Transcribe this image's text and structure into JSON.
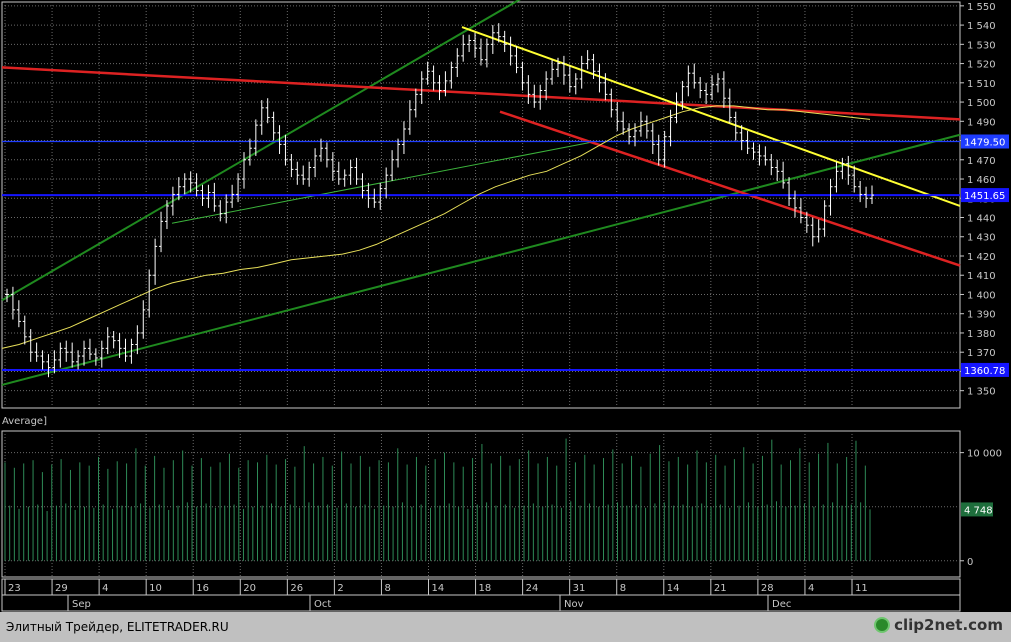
{
  "chart_data": [
    {
      "type": "candlestick",
      "panel": "price",
      "y_ticks": [
        "1 550",
        "1 540",
        "1 530",
        "1 520",
        "1 510",
        "1 500",
        "1 490",
        "1 480",
        "1 470",
        "1 460",
        "1 450",
        "1 440",
        "1 430",
        "1 420",
        "1 410",
        "1 400",
        "1 390",
        "1 380",
        "1 370",
        "1 360",
        "1 350"
      ],
      "ylim": [
        1341,
        1552
      ],
      "close_series": [
        1400,
        1392,
        1386,
        1378,
        1370,
        1368,
        1365,
        1362,
        1366,
        1372,
        1370,
        1365,
        1368,
        1372,
        1369,
        1367,
        1372,
        1378,
        1376,
        1372,
        1368,
        1374,
        1380,
        1392,
        1410,
        1425,
        1438,
        1446,
        1452,
        1456,
        1460,
        1458,
        1454,
        1450,
        1453,
        1446,
        1442,
        1448,
        1452,
        1460,
        1470,
        1476,
        1488,
        1497,
        1492,
        1484,
        1478,
        1470,
        1465,
        1462,
        1460,
        1466,
        1472,
        1476,
        1470,
        1464,
        1460,
        1462,
        1466,
        1460,
        1454,
        1450,
        1448,
        1455,
        1462,
        1470,
        1478,
        1486,
        1496,
        1504,
        1512,
        1516,
        1510,
        1506,
        1511,
        1518,
        1524,
        1530,
        1532,
        1528,
        1522,
        1530,
        1536,
        1534,
        1530,
        1524,
        1518,
        1510,
        1504,
        1500,
        1506,
        1512,
        1517,
        1520,
        1514,
        1508,
        1512,
        1520,
        1522,
        1516,
        1510,
        1504,
        1496,
        1490,
        1486,
        1482,
        1485,
        1490,
        1485,
        1478,
        1470,
        1482,
        1492,
        1500,
        1508,
        1515,
        1510,
        1506,
        1504,
        1509,
        1512,
        1502,
        1492,
        1484,
        1480,
        1476,
        1474,
        1472,
        1470,
        1466,
        1464,
        1458,
        1450,
        1445,
        1440,
        1436,
        1430,
        1434,
        1446,
        1456,
        1464,
        1468,
        1462,
        1456,
        1452,
        1450,
        1451.65
      ],
      "ma_series": [
        1372,
        1374,
        1377,
        1380,
        1383,
        1387,
        1391,
        1395,
        1399,
        1403,
        1406,
        1408,
        1410,
        1411,
        1413,
        1414,
        1416,
        1418,
        1419,
        1420,
        1421,
        1423,
        1426,
        1430,
        1434,
        1438,
        1442,
        1447,
        1452,
        1456,
        1459,
        1462,
        1464,
        1468,
        1472,
        1477,
        1482,
        1486,
        1489,
        1492,
        1495,
        1497,
        1498,
        1498,
        1497,
        1496,
        1496,
        1495,
        1494,
        1493,
        1492,
        1491
      ],
      "horizontal_levels": [
        {
          "value": 1479.5,
          "label": "1479.50",
          "color": "#1e3cff",
          "highlight": false
        },
        {
          "value": 1451.65,
          "label": "1451.65",
          "color": "#1515ff",
          "highlight": true
        },
        {
          "value": 1360.78,
          "label": "1360.78",
          "color": "#1515ff",
          "highlight": true
        }
      ],
      "indicator_label": "Average]",
      "colors": {
        "candle": "#ffffff",
        "ma": "#e8e05a",
        "trend_red": "#dd2222",
        "trend_yellow": "#ffff33",
        "channel_green": "#1f8a1f",
        "thin_green": "#3cb43c"
      }
    },
    {
      "type": "bar",
      "panel": "volume",
      "y_ticks": [
        "10 000",
        "4 748",
        "0"
      ],
      "ylim": [
        -1500,
        12000
      ],
      "current_value": "4 748",
      "values": [
        9100,
        5100,
        8600,
        4800,
        9000,
        5000,
        9300,
        5200,
        8200,
        4600,
        8900,
        5100,
        9400,
        5300,
        8400,
        4700,
        9100,
        5000,
        8800,
        4900,
        9600,
        5200,
        8500,
        4800,
        9200,
        5100,
        9000,
        5000,
        10400,
        5300,
        8800,
        4900,
        9700,
        5200,
        8600,
        4700,
        9300,
        5100,
        10200,
        5400,
        8800,
        5000,
        9500,
        5300,
        8700,
        4900,
        9100,
        5100,
        9900,
        5200,
        8600,
        4800,
        9300,
        5000,
        9100,
        5100,
        9800,
        5300,
        8900,
        5000,
        9400,
        5200,
        8700,
        4900,
        10600,
        5400,
        9000,
        5100,
        9600,
        5200,
        8800,
        4900,
        10100,
        5300,
        9000,
        5000,
        9700,
        5200,
        8700,
        4800,
        9300,
        5100,
        9100,
        5000,
        10400,
        5400,
        8900,
        5000,
        9600,
        5200,
        8800,
        4900,
        9400,
        5100,
        10000,
        5300,
        9100,
        5000,
        8700,
        4800,
        9500,
        5200,
        10800,
        5400,
        9000,
        5100,
        9700,
        5200,
        8800,
        4900,
        9400,
        5100,
        10200,
        5300,
        9000,
        5000,
        9600,
        5200,
        8800,
        4900,
        11300,
        5500,
        9100,
        5100,
        9800,
        5300,
        8900,
        5000,
        9500,
        5200,
        10300,
        5400,
        9000,
        5100,
        9700,
        5200,
        8700,
        4900,
        9900,
        5300,
        10700,
        5400,
        9200,
        5100,
        9600,
        5200,
        8900,
        5000,
        10200,
        5300,
        9100,
        5000,
        9800,
        5200,
        8800,
        4900,
        9400,
        5100,
        10500,
        5400,
        9000,
        5000,
        9700,
        5200,
        11200,
        5500,
        8900,
        5000,
        9300,
        5100,
        10400,
        5300,
        9100,
        5000,
        9900,
        5200,
        10900,
        5400,
        9000,
        5100,
        9600,
        5200,
        11100,
        5400,
        8800,
        4748
      ]
    }
  ],
  "x_axis": {
    "day_labels": [
      "23",
      "29",
      "4",
      "10",
      "16",
      "20",
      "26",
      "2",
      "8",
      "14",
      "18",
      "24",
      "31",
      "8",
      "14",
      "21",
      "28",
      "4",
      "11"
    ],
    "month_labels": [
      "Sep",
      "Oct",
      "Nov",
      "Dec"
    ]
  },
  "footer": {
    "text": "Элитный Трейдер, ELITETRADER.RU",
    "logo": "clip2net.com",
    "logo_icon": "clip2net-logo-icon"
  }
}
